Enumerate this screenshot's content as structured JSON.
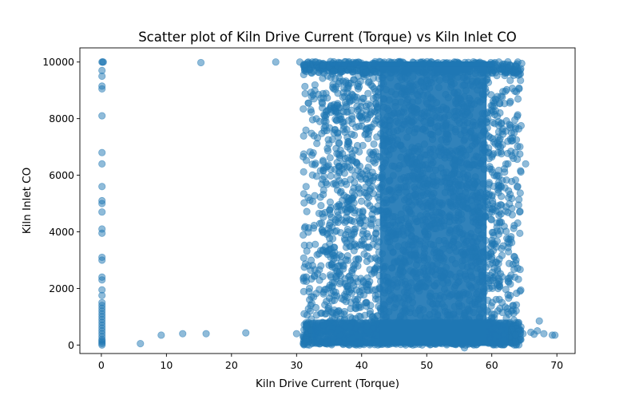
{
  "chart_data": {
    "type": "scatter",
    "title": "Scatter plot of Kiln Drive Current (Torque) vs Kiln Inlet CO",
    "xlabel": "Kiln Drive Current (Torque)",
    "ylabel": "Kiln Inlet CO",
    "xlim": [
      -3.3,
      72.8
    ],
    "ylim": [
      -300,
      10500
    ],
    "xticks": [
      0,
      10,
      20,
      30,
      40,
      50,
      60,
      70
    ],
    "xtick_labels": [
      "0",
      "10",
      "20",
      "30",
      "40",
      "50",
      "60",
      "70"
    ],
    "yticks": [
      0,
      2000,
      4000,
      6000,
      8000,
      10000
    ],
    "ytick_labels": [
      "0",
      "2000",
      "4000",
      "6000",
      "8000",
      "10000"
    ],
    "grid": false,
    "marker_color": "#1f77b4",
    "marker_alpha": 0.5,
    "series": [
      {
        "name": "",
        "points": [
          [
            0.1,
            10000
          ],
          [
            0.2,
            10000
          ],
          [
            0.3,
            10000
          ],
          [
            0.1,
            9700
          ],
          [
            0.1,
            9500
          ],
          [
            0.1,
            9150
          ],
          [
            0.1,
            9050
          ],
          [
            0.1,
            8100
          ],
          [
            0.1,
            6800
          ],
          [
            0.1,
            6400
          ],
          [
            0.1,
            5600
          ],
          [
            0.1,
            5100
          ],
          [
            0.1,
            5000
          ],
          [
            0.1,
            4700
          ],
          [
            0.1,
            4100
          ],
          [
            0.1,
            3950
          ],
          [
            0.1,
            3100
          ],
          [
            0.1,
            3000
          ],
          [
            0.1,
            2400
          ],
          [
            0.1,
            2300
          ],
          [
            0.1,
            1950
          ],
          [
            0.1,
            1750
          ],
          [
            0.1,
            1500
          ],
          [
            0.1,
            1400
          ],
          [
            0.1,
            1300
          ],
          [
            0.1,
            1200
          ],
          [
            0.1,
            1100
          ],
          [
            0.1,
            1000
          ],
          [
            0.1,
            900
          ],
          [
            0.1,
            800
          ],
          [
            0.1,
            700
          ],
          [
            0.1,
            600
          ],
          [
            0.1,
            500
          ],
          [
            0.1,
            400
          ],
          [
            0.1,
            300
          ],
          [
            0.1,
            200
          ],
          [
            0.1,
            150
          ],
          [
            0.1,
            100
          ],
          [
            0.1,
            50
          ],
          [
            0.1,
            0
          ],
          [
            6.0,
            50
          ],
          [
            9.2,
            350
          ],
          [
            12.5,
            400
          ],
          [
            16.1,
            400
          ],
          [
            22.2,
            430
          ],
          [
            15.3,
            9980
          ],
          [
            26.8,
            10000
          ],
          [
            30.0,
            400
          ],
          [
            31.5,
            2250
          ],
          [
            32.0,
            1600
          ],
          [
            31.8,
            10000
          ],
          [
            30.5,
            10000
          ],
          [
            66.0,
            450
          ],
          [
            67.0,
            500
          ],
          [
            67.3,
            850
          ],
          [
            68.0,
            400
          ],
          [
            69.3,
            350
          ],
          [
            69.7,
            350
          ],
          [
            66.5,
            380
          ],
          [
            64.8,
            400
          ],
          [
            65.2,
            6400
          ],
          [
            64.5,
            7750
          ],
          [
            64.2,
            9050
          ],
          [
            64.0,
            10000
          ],
          [
            64.6,
            9950
          ],
          [
            55.8,
            -100
          ],
          [
            56.0,
            0
          ]
        ]
      }
    ]
  }
}
